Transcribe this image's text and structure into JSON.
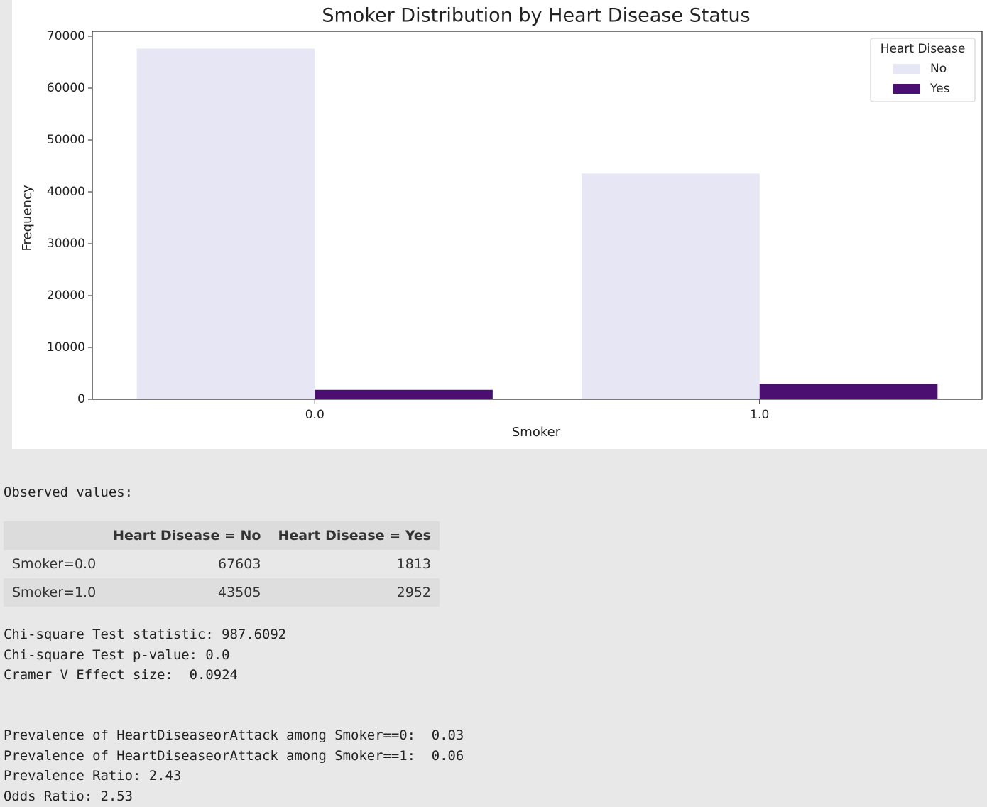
{
  "chart_data": {
    "type": "bar",
    "title": "Smoker Distribution by Heart Disease Status",
    "x_label": "Smoker",
    "y_label": "Frequency",
    "categories": [
      "0.0",
      "1.0"
    ],
    "series": [
      {
        "name": "No",
        "color": "#e6e6f5",
        "values": [
          67603,
          43505
        ]
      },
      {
        "name": "Yes",
        "color": "#4b0f72",
        "values": [
          1813,
          2952
        ]
      }
    ],
    "legend_title": "Heart Disease",
    "legend": "upper right",
    "ylim": [
      0,
      70960
    ],
    "yticks": [
      0,
      10000,
      20000,
      30000,
      40000,
      50000,
      60000,
      70000
    ],
    "grid": false
  },
  "output": {
    "intro": "Observed values:",
    "table": {
      "columns": [
        "Heart Disease = No",
        "Heart Disease = Yes"
      ],
      "rows": [
        [
          "Smoker=0.0",
          67603,
          1813
        ],
        [
          "Smoker=1.0",
          43505,
          2952
        ]
      ]
    },
    "stats": [
      "Chi-square Test statistic: 987.6092",
      "Chi-square Test p-value: 0.0",
      "Cramer V Effect size:  0.0924"
    ],
    "prevalence": [
      "Prevalence of HeartDiseaseorAttack among Smoker==0:  0.03",
      "Prevalence of HeartDiseaseorAttack among Smoker==1:  0.06",
      "Prevalence Ratio: 2.43",
      "Odds Ratio: 2.53"
    ]
  }
}
